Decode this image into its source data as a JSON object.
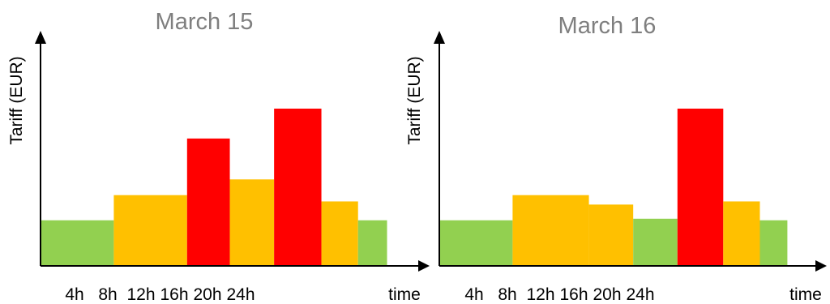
{
  "chart_data": [
    {
      "type": "bar",
      "title": "March 15",
      "ylabel": "Tariff (EUR)",
      "xlabel": "time",
      "x_ticks": [
        "4h",
        "8h",
        "12h",
        "16h",
        "20h",
        "24h"
      ],
      "xlim": [
        0,
        24
      ],
      "ylim": [
        0,
        100
      ],
      "grid": false,
      "legend": "none",
      "bars": [
        {
          "start": 0,
          "end": 4.8,
          "value": 29,
          "color": "#92d050"
        },
        {
          "start": 4.8,
          "end": 9.6,
          "value": 45,
          "color": "#ffc000"
        },
        {
          "start": 9.6,
          "end": 12.4,
          "value": 81,
          "color": "#ff0000"
        },
        {
          "start": 12.4,
          "end": 15.3,
          "value": 55,
          "color": "#ffc000"
        },
        {
          "start": 15.3,
          "end": 18.4,
          "value": 100,
          "color": "#ff0000"
        },
        {
          "start": 18.4,
          "end": 20.8,
          "value": 41,
          "color": "#ffc000"
        },
        {
          "start": 20.8,
          "end": 22.7,
          "value": 29,
          "color": "#92d050"
        }
      ]
    },
    {
      "type": "bar",
      "title": "March 16",
      "ylabel": "Tariff (EUR)",
      "xlabel": "time",
      "x_ticks": [
        "4h",
        "8h",
        "12h",
        "16h",
        "20h",
        "24h"
      ],
      "xlim": [
        0,
        24
      ],
      "ylim": [
        0,
        100
      ],
      "grid": false,
      "legend": "none",
      "bars": [
        {
          "start": 0,
          "end": 4.8,
          "value": 29,
          "color": "#92d050"
        },
        {
          "start": 4.8,
          "end": 9.8,
          "value": 45,
          "color": "#ffc000"
        },
        {
          "start": 9.8,
          "end": 12.7,
          "value": 39,
          "color": "#ffc000"
        },
        {
          "start": 12.7,
          "end": 15.6,
          "value": 30,
          "color": "#92d050"
        },
        {
          "start": 15.6,
          "end": 18.6,
          "value": 100,
          "color": "#ff0000"
        },
        {
          "start": 18.6,
          "end": 21.0,
          "value": 41,
          "color": "#ffc000"
        },
        {
          "start": 21.0,
          "end": 22.8,
          "value": 29,
          "color": "#92d050"
        }
      ]
    }
  ]
}
